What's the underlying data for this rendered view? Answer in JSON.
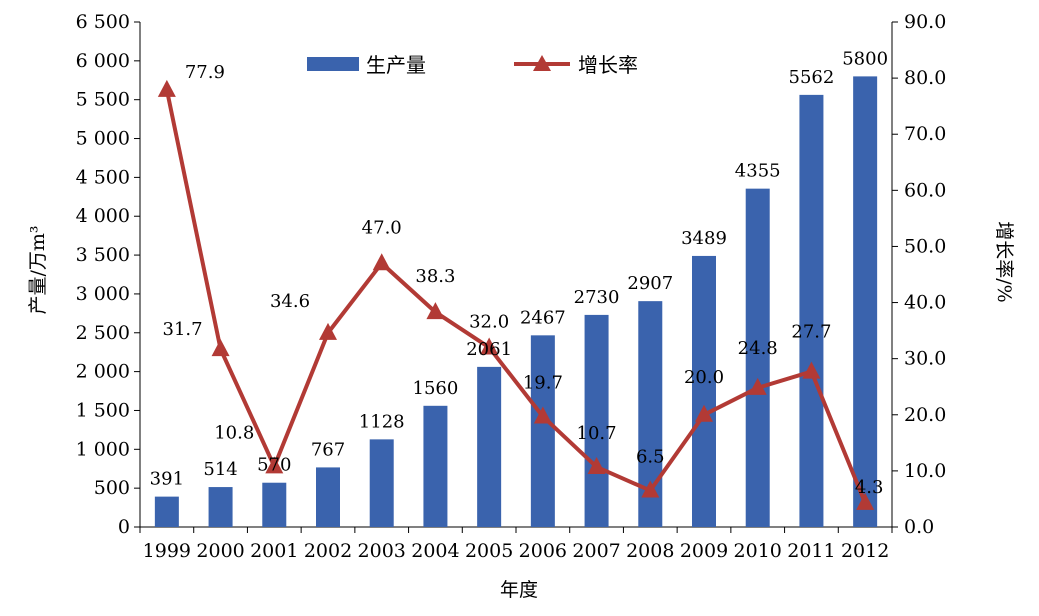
{
  "chart_data": {
    "type": "bar+line",
    "categories": [
      "1999",
      "2000",
      "2001",
      "2002",
      "2003",
      "2004",
      "2005",
      "2006",
      "2007",
      "2008",
      "2009",
      "2010",
      "2011",
      "2012"
    ],
    "series": [
      {
        "name": "生产量",
        "type": "bar",
        "axis": "left",
        "color": "#3a63ad",
        "values": [
          391,
          514,
          570,
          767,
          1128,
          1560,
          2061,
          2467,
          2730,
          2907,
          3489,
          4355,
          5562,
          5800
        ],
        "labels": [
          "391",
          "514",
          "570",
          "767",
          "1128",
          "1560",
          "2061",
          "2467",
          "2730",
          "2907",
          "3489",
          "4355",
          "5562",
          "5800"
        ]
      },
      {
        "name": "增长率",
        "type": "line",
        "axis": "right",
        "color": "#b23a35",
        "values": [
          77.9,
          31.7,
          10.8,
          34.6,
          47.0,
          38.3,
          32.0,
          19.7,
          10.7,
          6.5,
          20.0,
          24.8,
          27.7,
          4.3
        ],
        "labels": [
          "77.9",
          "31.7",
          "10.8",
          "34.6",
          "47.0",
          "38.3",
          "32.0",
          "19.7",
          "10.7",
          "6.5",
          "20.0",
          "24.8",
          "27.7",
          "4.3"
        ]
      }
    ],
    "xlabel": "年度",
    "ylabel_left": "产量/万m³",
    "ylabel_right": "增长率/%",
    "ylim_left": [
      0,
      6500
    ],
    "ylim_right": [
      0,
      90
    ],
    "yticks_left": [
      "0",
      "500",
      "1 000",
      "1 500",
      "2 000",
      "2 500",
      "3 000",
      "3 500",
      "4 000",
      "4 500",
      "5 000",
      "5 500",
      "6 000",
      "6 500"
    ],
    "yticks_right": [
      "0.0",
      "10.0",
      "20.0",
      "30.0",
      "40.0",
      "50.0",
      "60.0",
      "70.0",
      "80.0",
      "90.0"
    ],
    "legend_position": "top",
    "grid": false
  }
}
